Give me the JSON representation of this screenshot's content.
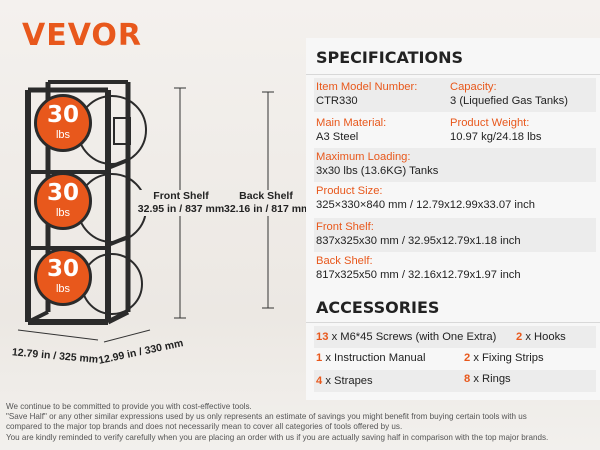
{
  "brand": "VEVOR",
  "product": {
    "tank_label": "30",
    "tank_unit": "lbs",
    "front_shelf": {
      "title": "Front Shelf",
      "value": "32.95 in / 837 mm"
    },
    "back_shelf": {
      "title": "Back Shelf",
      "value": "32.16 in / 817 mm"
    },
    "width": "12.79 in / 325 mm",
    "depth": "12.99 in / 330 mm"
  },
  "specifications": {
    "title": "SPECIFICATIONS",
    "item_model": {
      "label": "Item Model Number:",
      "value": "CTR330"
    },
    "capacity": {
      "label": "Capacity:",
      "value": "3 (Liquefied Gas Tanks)"
    },
    "material": {
      "label": "Main Material:",
      "value": "A3 Steel"
    },
    "weight": {
      "label": "Product Weight:",
      "value": "10.97 kg/24.18 lbs"
    },
    "max_loading": {
      "label": "Maximum Loading:",
      "value": "3x30 lbs (13.6KG) Tanks"
    },
    "size": {
      "label": "Product Size:",
      "value": "325×330×840 mm / 12.79x12.99x33.07 inch"
    },
    "front_shelf": {
      "label": "Front Shelf:",
      "value": "837x325x30 mm / 32.95x12.79x1.18 inch"
    },
    "back_shelf": {
      "label": "Back Shelf:",
      "value": "817x325x50 mm / 32.16x12.79x1.97 inch"
    }
  },
  "accessories": {
    "title": "ACCESSORIES",
    "items": [
      {
        "count": "13",
        "text": "x M6*45 Screws (with One Extra)"
      },
      {
        "count": "2",
        "text": "x Hooks"
      },
      {
        "count": "1",
        "text": "x Instruction Manual"
      },
      {
        "count": "2",
        "text": "x Fixing Strips"
      },
      {
        "count": "4",
        "text": "x Strapes"
      },
      {
        "count": "8",
        "text": "x Rings"
      }
    ]
  },
  "footer": [
    "We continue to be committed to provide you with cost-effective tools.",
    "\"Save Half\" or any other similar expressions used by us only represents an estimate of savings you might benefit from buying certain tools with us",
    "compared to the major top brands and does not necessarily mean to cover all categories of tools offered by us.",
    "You are kindly reminded to verify carefully when you are placing an order with us if you are actually saving half in comparison with the top major brands."
  ],
  "colors": {
    "accent": "#e8581c",
    "frame": "#2b2b2b"
  }
}
